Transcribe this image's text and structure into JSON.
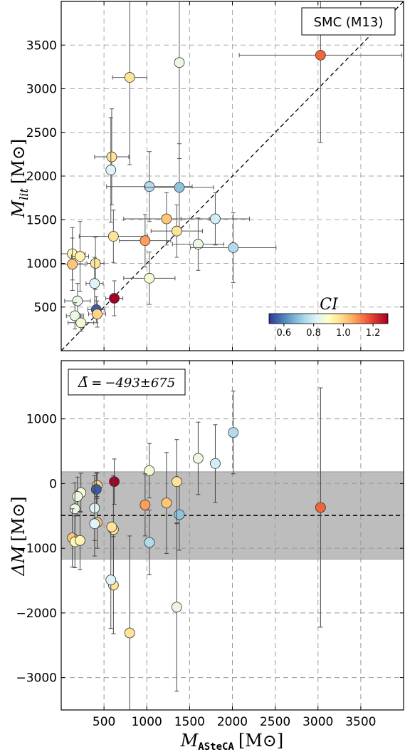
{
  "chart_data": [
    {
      "type": "scatter",
      "panel": "top",
      "legend": "SMC (M13)",
      "xlim": [
        0,
        4000
      ],
      "ylim": [
        0,
        4000
      ],
      "xticks": [
        500,
        1000,
        1500,
        2000,
        2500,
        3000,
        3500
      ],
      "yticks": [
        500,
        1000,
        1500,
        2000,
        2500,
        3000,
        3500
      ],
      "ylabel_main": "M",
      "ylabel_sub": "lit",
      "ylabel_unit": "[M",
      "ylabel_unit_close": "]",
      "identity_line": true,
      "grid": true,
      "colorbar": {
        "title": "CI",
        "min": 0.5,
        "max": 1.3,
        "ticks": [
          "0.6",
          "0.8",
          "1.0",
          "1.2"
        ],
        "tick_values": [
          0.6,
          0.8,
          1.0,
          1.2
        ],
        "colormap": "RdYlBu_r",
        "placement": "lower-right"
      },
      "points": [
        {
          "x": 3030,
          "y": 3385,
          "xerr": 950,
          "yerr": 1000,
          "ci": 1.15
        },
        {
          "x": 1380,
          "y": 3300,
          "xerr": 0,
          "yerr": 1100,
          "ci": 0.85
        },
        {
          "x": 800,
          "y": 3130,
          "xerr": 200,
          "yerr": 1000,
          "ci": 0.97
        },
        {
          "x": 590,
          "y": 2220,
          "xerr": 200,
          "yerr": 550,
          "ci": 0.97
        },
        {
          "x": 580,
          "y": 2070,
          "xerr": 0,
          "yerr": 600,
          "ci": 0.82
        },
        {
          "x": 1030,
          "y": 1880,
          "xerr": 500,
          "yerr": 400,
          "ci": 0.75
        },
        {
          "x": 1380,
          "y": 1870,
          "xerr": 400,
          "yerr": 500,
          "ci": 0.7
        },
        {
          "x": 1230,
          "y": 1510,
          "xerr": 500,
          "yerr": 300,
          "ci": 1.02
        },
        {
          "x": 1800,
          "y": 1510,
          "xerr": 400,
          "yerr": 300,
          "ci": 0.8
        },
        {
          "x": 1350,
          "y": 1370,
          "xerr": 300,
          "yerr": 300,
          "ci": 0.97
        },
        {
          "x": 610,
          "y": 1310,
          "xerr": 400,
          "yerr": 300,
          "ci": 0.97
        },
        {
          "x": 980,
          "y": 1260,
          "xerr": 300,
          "yerr": 300,
          "ci": 1.08
        },
        {
          "x": 1600,
          "y": 1220,
          "xerr": 300,
          "yerr": 300,
          "ci": 0.85
        },
        {
          "x": 2010,
          "y": 1180,
          "xerr": 500,
          "yerr": 400,
          "ci": 0.75
        },
        {
          "x": 130,
          "y": 1110,
          "xerr": 150,
          "yerr": 300,
          "ci": 0.92
        },
        {
          "x": 220,
          "y": 1080,
          "xerr": 100,
          "yerr": 400,
          "ci": 0.93
        },
        {
          "x": 130,
          "y": 990,
          "xerr": 150,
          "yerr": 300,
          "ci": 1.02
        },
        {
          "x": 400,
          "y": 1000,
          "xerr": 100,
          "yerr": 300,
          "ci": 0.97
        },
        {
          "x": 390,
          "y": 770,
          "xerr": 100,
          "yerr": 300,
          "ci": 0.82
        },
        {
          "x": 1030,
          "y": 830,
          "xerr": 300,
          "yerr": 300,
          "ci": 0.87
        },
        {
          "x": 620,
          "y": 600,
          "xerr": 100,
          "yerr": 200,
          "ci": 1.3
        },
        {
          "x": 190,
          "y": 570,
          "xerr": 150,
          "yerr": 200,
          "ci": 0.85
        },
        {
          "x": 410,
          "y": 470,
          "xerr": 100,
          "yerr": 150,
          "ci": 0.55
        },
        {
          "x": 420,
          "y": 420,
          "xerr": 100,
          "yerr": 150,
          "ci": 1.0
        },
        {
          "x": 160,
          "y": 400,
          "xerr": 100,
          "yerr": 150,
          "ci": 0.85
        },
        {
          "x": 230,
          "y": 320,
          "xerr": 150,
          "yerr": 100,
          "ci": 0.87
        }
      ]
    },
    {
      "type": "scatter",
      "panel": "bottom",
      "legend": "Δ̄ = −493±675",
      "legend_parts": {
        "symbol": "Δ̄",
        "eq": "=",
        "value": "−493±675"
      },
      "xlim": [
        0,
        4000
      ],
      "ylim": [
        -3500,
        1900
      ],
      "xticks": [
        500,
        1000,
        1500,
        2000,
        2500,
        3000,
        3500
      ],
      "xtick_labels": [
        "500",
        "1000",
        "1500",
        "2000",
        "2500",
        "3000",
        "3500"
      ],
      "yticks": [
        1000,
        0,
        -1000,
        -2000,
        -3000
      ],
      "ytick_labels": [
        "1000",
        "0",
        "−1000",
        "−2000",
        "−3000"
      ],
      "xlabel_main": "M",
      "xlabel_sub": "ASteCA",
      "xlabel_unit": "[M",
      "xlabel_unit_close": "]",
      "ylabel_main": "ΔM",
      "ylabel_unit": "[M",
      "ylabel_unit_close": "]",
      "mean_line": -493,
      "band": [
        -1168,
        182
      ],
      "grid": true,
      "points": [
        {
          "x": 3030,
          "y": -370,
          "yerr": 1850,
          "ci": 1.15
        },
        {
          "x": 2010,
          "y": 790,
          "yerr": 640,
          "ci": 0.75
        },
        {
          "x": 1800,
          "y": 310,
          "yerr": 600,
          "ci": 0.8
        },
        {
          "x": 1600,
          "y": 390,
          "yerr": 560,
          "ci": 0.85
        },
        {
          "x": 1380,
          "y": -480,
          "yerr": 550,
          "ci": 0.7
        },
        {
          "x": 1350,
          "y": 30,
          "yerr": 650,
          "ci": 0.97
        },
        {
          "x": 1350,
          "y": -1910,
          "yerr": 1300,
          "ci": 0.85
        },
        {
          "x": 1230,
          "y": -300,
          "yerr": 780,
          "ci": 1.02
        },
        {
          "x": 1030,
          "y": 200,
          "yerr": 420,
          "ci": 0.87
        },
        {
          "x": 1030,
          "y": -910,
          "yerr": 500,
          "ci": 0.75
        },
        {
          "x": 980,
          "y": -330,
          "yerr": 480,
          "ci": 1.08
        },
        {
          "x": 800,
          "y": -2310,
          "yerr": 1500,
          "ci": 0.97
        },
        {
          "x": 620,
          "y": 30,
          "yerr": 350,
          "ci": 1.3
        },
        {
          "x": 610,
          "y": -710,
          "yerr": 830,
          "ci": 0.97
        },
        {
          "x": 610,
          "y": -1570,
          "yerr": 750,
          "ci": 0.97
        },
        {
          "x": 580,
          "y": -1490,
          "yerr": 750,
          "ci": 0.82
        },
        {
          "x": 590,
          "y": -670,
          "yerr": 0,
          "ci": 0.97
        },
        {
          "x": 420,
          "y": -30,
          "yerr": 200,
          "ci": 1.0
        },
        {
          "x": 410,
          "y": -90,
          "yerr": 250,
          "ci": 0.55
        },
        {
          "x": 420,
          "y": -600,
          "yerr": 400,
          "ci": 1.02
        },
        {
          "x": 390,
          "y": -380,
          "yerr": 500,
          "ci": 0.82
        },
        {
          "x": 390,
          "y": -620,
          "yerr": 500,
          "ci": 0.82
        },
        {
          "x": 230,
          "y": -140,
          "yerr": 300,
          "ci": 0.87
        },
        {
          "x": 190,
          "y": -200,
          "yerr": 300,
          "ci": 0.85
        },
        {
          "x": 160,
          "y": -390,
          "yerr": 400,
          "ci": 0.85
        },
        {
          "x": 130,
          "y": -840,
          "yerr": 450,
          "ci": 1.02
        },
        {
          "x": 160,
          "y": -900,
          "yerr": 400,
          "ci": 0.92
        },
        {
          "x": 220,
          "y": -880,
          "yerr": 450,
          "ci": 0.93
        }
      ]
    }
  ]
}
